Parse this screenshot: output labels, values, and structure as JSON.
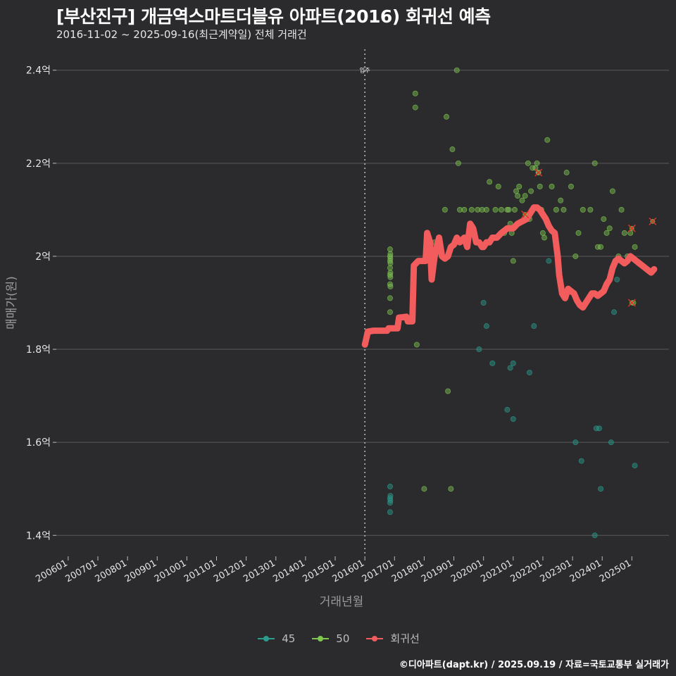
{
  "title": "[부산진구] 개금역스마트더블유 아파트(2016) 회귀선 예측",
  "subtitle": "2016-11-02 ~ 2025-09-16(최근계약일) 전체 거래건",
  "caption": "©디아파트(dapt.kr) / 2025.09.19 / 자료=국토교통부 실거래가",
  "colors": {
    "background": "#2b2b2d",
    "grid": "#5a5a5c",
    "s45": "#2a9d8f",
    "s50": "#7ec850",
    "regression": "#f25c5c",
    "outlier": "#e0302a"
  },
  "chart_data": {
    "type": "scatter",
    "xlabel": "거래년월",
    "ylabel": "매매가(원)",
    "xlim": [
      2005.6,
      2026.25
    ],
    "ylim": [
      1.355,
      2.445
    ],
    "x_ticks": [
      {
        "label": "200601",
        "value": 2006.0
      },
      {
        "label": "200701",
        "value": 2007.0
      },
      {
        "label": "200801",
        "value": 2008.0
      },
      {
        "label": "200901",
        "value": 2009.0
      },
      {
        "label": "201001",
        "value": 2010.0
      },
      {
        "label": "201101",
        "value": 2011.0
      },
      {
        "label": "201201",
        "value": 2012.0
      },
      {
        "label": "201301",
        "value": 2013.0
      },
      {
        "label": "201401",
        "value": 2014.0
      },
      {
        "label": "201501",
        "value": 2015.0
      },
      {
        "label": "201601",
        "value": 2016.0
      },
      {
        "label": "201701",
        "value": 2017.0
      },
      {
        "label": "201801",
        "value": 2018.0
      },
      {
        "label": "201901",
        "value": 2019.0
      },
      {
        "label": "202001",
        "value": 2020.0
      },
      {
        "label": "202101",
        "value": 2021.0
      },
      {
        "label": "202201",
        "value": 2022.0
      },
      {
        "label": "202301",
        "value": 2023.0
      },
      {
        "label": "202401",
        "value": 2024.0
      },
      {
        "label": "202501",
        "value": 2025.0
      }
    ],
    "y_ticks": [
      {
        "label": "1.4억",
        "value": 1.4
      },
      {
        "label": "1.6억",
        "value": 1.6
      },
      {
        "label": "1.8억",
        "value": 1.8
      },
      {
        "label": "2억",
        "value": 2.0
      },
      {
        "label": "2.2억",
        "value": 2.2
      },
      {
        "label": "2.4억",
        "value": 2.4
      }
    ],
    "annotation": {
      "label": "입주",
      "x": 2016.0
    },
    "legend": [
      "45",
      "50",
      "회귀선"
    ],
    "series": [
      {
        "name": "45",
        "points": [
          [
            2016.85,
            1.45
          ],
          [
            2016.85,
            1.47
          ],
          [
            2016.86,
            1.475
          ],
          [
            2016.85,
            1.48
          ],
          [
            2016.86,
            1.485
          ],
          [
            2016.85,
            1.505
          ],
          [
            2019.85,
            1.8
          ],
          [
            2020.0,
            1.9
          ],
          [
            2020.1,
            1.85
          ],
          [
            2020.3,
            1.77
          ],
          [
            2020.8,
            1.67
          ],
          [
            2020.9,
            1.76
          ],
          [
            2021.0,
            1.77
          ],
          [
            2021.0,
            1.65
          ],
          [
            2021.55,
            1.75
          ],
          [
            2021.7,
            1.85
          ],
          [
            2022.2,
            1.99
          ],
          [
            2023.1,
            1.6
          ],
          [
            2023.3,
            1.56
          ],
          [
            2023.75,
            1.4
          ],
          [
            2023.8,
            1.63
          ],
          [
            2023.9,
            1.63
          ],
          [
            2023.95,
            1.5
          ],
          [
            2024.3,
            1.6
          ],
          [
            2025.1,
            1.55
          ],
          [
            2024.4,
            1.88
          ],
          [
            2024.5,
            1.95
          ]
        ]
      },
      {
        "name": "50",
        "points": [
          [
            2016.85,
            1.88
          ],
          [
            2016.85,
            1.91
          ],
          [
            2016.86,
            1.935
          ],
          [
            2016.85,
            1.94
          ],
          [
            2016.86,
            1.955
          ],
          [
            2016.85,
            1.96
          ],
          [
            2016.86,
            1.965
          ],
          [
            2016.85,
            1.975
          ],
          [
            2016.86,
            1.985
          ],
          [
            2016.85,
            1.99
          ],
          [
            2016.86,
            1.995
          ],
          [
            2016.85,
            2.0
          ],
          [
            2016.86,
            2.005
          ],
          [
            2016.85,
            2.015
          ],
          [
            2017.7,
            2.32
          ],
          [
            2017.7,
            2.35
          ],
          [
            2017.75,
            1.81
          ],
          [
            2017.9,
            1.99
          ],
          [
            2018.0,
            1.5
          ],
          [
            2018.35,
            2.03
          ],
          [
            2018.45,
            2.01
          ],
          [
            2018.7,
            2.1
          ],
          [
            2018.75,
            2.3
          ],
          [
            2018.8,
            1.71
          ],
          [
            2018.9,
            1.5
          ],
          [
            2018.95,
            2.23
          ],
          [
            2019.1,
            2.4
          ],
          [
            2019.15,
            2.2
          ],
          [
            2019.2,
            2.1
          ],
          [
            2019.35,
            2.1
          ],
          [
            2019.5,
            2.05
          ],
          [
            2019.6,
            2.1
          ],
          [
            2019.7,
            2.05
          ],
          [
            2019.8,
            2.1
          ],
          [
            2019.95,
            2.1
          ],
          [
            2020.1,
            2.1
          ],
          [
            2020.2,
            2.16
          ],
          [
            2020.4,
            2.1
          ],
          [
            2020.5,
            2.15
          ],
          [
            2020.6,
            2.1
          ],
          [
            2020.7,
            2.05
          ],
          [
            2020.8,
            2.1
          ],
          [
            2020.85,
            2.1
          ],
          [
            2020.9,
            2.07
          ],
          [
            2020.95,
            2.05
          ],
          [
            2021.0,
            1.99
          ],
          [
            2021.05,
            2.1
          ],
          [
            2021.1,
            2.14
          ],
          [
            2021.15,
            2.13
          ],
          [
            2021.2,
            2.15
          ],
          [
            2021.3,
            2.12
          ],
          [
            2021.4,
            2.13
          ],
          [
            2021.5,
            2.2
          ],
          [
            2021.55,
            2.08
          ],
          [
            2021.6,
            2.14
          ],
          [
            2021.65,
            2.19
          ],
          [
            2021.75,
            2.19
          ],
          [
            2021.8,
            2.2
          ],
          [
            2021.85,
            2.18
          ],
          [
            2021.9,
            2.15
          ],
          [
            2021.95,
            2.1
          ],
          [
            2022.0,
            2.05
          ],
          [
            2022.05,
            2.04
          ],
          [
            2022.15,
            2.25
          ],
          [
            2022.3,
            2.15
          ],
          [
            2022.45,
            2.1
          ],
          [
            2022.6,
            2.12
          ],
          [
            2022.7,
            2.1
          ],
          [
            2022.8,
            2.18
          ],
          [
            2022.95,
            2.15
          ],
          [
            2023.1,
            2.0
          ],
          [
            2023.2,
            2.05
          ],
          [
            2023.35,
            2.1
          ],
          [
            2023.6,
            2.1
          ],
          [
            2023.75,
            2.2
          ],
          [
            2023.85,
            2.02
          ],
          [
            2023.95,
            2.02
          ],
          [
            2024.05,
            2.08
          ],
          [
            2024.15,
            2.05
          ],
          [
            2024.25,
            2.06
          ],
          [
            2024.35,
            2.14
          ],
          [
            2024.55,
            2.0
          ],
          [
            2024.65,
            2.1
          ],
          [
            2024.75,
            2.05
          ],
          [
            2024.85,
            2.0
          ],
          [
            2024.95,
            2.05
          ],
          [
            2025.05,
            1.9
          ],
          [
            2025.1,
            2.02
          ]
        ]
      }
    ],
    "outliers": [
      [
        2021.85,
        2.18
      ],
      [
        2021.4,
        2.09
      ],
      [
        2025.0,
        2.06
      ],
      [
        2025.7,
        2.075
      ],
      [
        2025.0,
        1.9
      ]
    ],
    "regression": [
      [
        2016.0,
        1.81
      ],
      [
        2016.1,
        1.838
      ],
      [
        2016.3,
        1.84
      ],
      [
        2016.6,
        1.84
      ],
      [
        2016.75,
        1.84
      ],
      [
        2016.8,
        1.845
      ],
      [
        2017.1,
        1.845
      ],
      [
        2017.15,
        1.868
      ],
      [
        2017.4,
        1.87
      ],
      [
        2017.45,
        1.86
      ],
      [
        2017.6,
        1.86
      ],
      [
        2017.65,
        1.98
      ],
      [
        2017.8,
        1.99
      ],
      [
        2018.05,
        1.99
      ],
      [
        2018.1,
        2.05
      ],
      [
        2018.2,
        2.03
      ],
      [
        2018.25,
        1.95
      ],
      [
        2018.35,
        2.0
      ],
      [
        2018.5,
        2.04
      ],
      [
        2018.6,
        2.0
      ],
      [
        2018.7,
        1.995
      ],
      [
        2018.8,
        2.0
      ],
      [
        2018.9,
        2.02
      ],
      [
        2019.0,
        2.025
      ],
      [
        2019.1,
        2.04
      ],
      [
        2019.2,
        2.03
      ],
      [
        2019.35,
        2.04
      ],
      [
        2019.45,
        2.02
      ],
      [
        2019.55,
        2.07
      ],
      [
        2019.65,
        2.06
      ],
      [
        2019.75,
        2.03
      ],
      [
        2019.85,
        2.03
      ],
      [
        2019.95,
        2.02
      ],
      [
        2020.0,
        2.02
      ],
      [
        2020.1,
        2.03
      ],
      [
        2020.2,
        2.03
      ],
      [
        2020.3,
        2.04
      ],
      [
        2020.45,
        2.04
      ],
      [
        2020.6,
        2.05
      ],
      [
        2020.8,
        2.06
      ],
      [
        2021.0,
        2.06
      ],
      [
        2021.15,
        2.07
      ],
      [
        2021.3,
        2.075
      ],
      [
        2021.45,
        2.08
      ],
      [
        2021.55,
        2.09
      ],
      [
        2021.7,
        2.105
      ],
      [
        2021.8,
        2.105
      ],
      [
        2021.9,
        2.1
      ],
      [
        2022.0,
        2.09
      ],
      [
        2022.1,
        2.08
      ],
      [
        2022.2,
        2.065
      ],
      [
        2022.3,
        2.055
      ],
      [
        2022.4,
        2.05
      ],
      [
        2022.5,
        2.0
      ],
      [
        2022.55,
        1.96
      ],
      [
        2022.65,
        1.92
      ],
      [
        2022.75,
        1.91
      ],
      [
        2022.85,
        1.93
      ],
      [
        2022.95,
        1.925
      ],
      [
        2023.05,
        1.92
      ],
      [
        2023.15,
        1.905
      ],
      [
        2023.25,
        1.895
      ],
      [
        2023.35,
        1.89
      ],
      [
        2023.45,
        1.9
      ],
      [
        2023.55,
        1.91
      ],
      [
        2023.65,
        1.92
      ],
      [
        2023.75,
        1.92
      ],
      [
        2023.85,
        1.915
      ],
      [
        2023.95,
        1.92
      ],
      [
        2024.05,
        1.925
      ],
      [
        2024.15,
        1.94
      ],
      [
        2024.25,
        1.95
      ],
      [
        2024.35,
        1.975
      ],
      [
        2024.45,
        1.99
      ],
      [
        2024.55,
        1.995
      ],
      [
        2024.65,
        1.99
      ],
      [
        2024.75,
        1.985
      ],
      [
        2024.85,
        1.99
      ],
      [
        2024.95,
        2.0
      ],
      [
        2025.05,
        1.995
      ],
      [
        2025.15,
        1.99
      ],
      [
        2025.25,
        1.985
      ],
      [
        2025.35,
        1.98
      ],
      [
        2025.45,
        1.975
      ],
      [
        2025.55,
        1.97
      ],
      [
        2025.65,
        1.965
      ],
      [
        2025.75,
        1.972
      ]
    ]
  }
}
